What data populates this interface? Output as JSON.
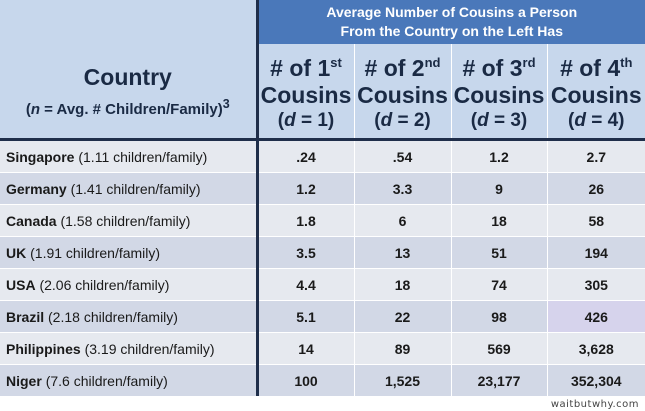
{
  "banner": {
    "line1": "Average Number of Cousins a Person",
    "line2": "From the Country on the Left Has"
  },
  "country_header": {
    "title": "Country",
    "subtitle_var": "n",
    "subtitle_text": " = Avg. # Children/Family)",
    "subtitle_open": "(",
    "footnote": "3"
  },
  "columns": [
    {
      "prefix": "# of ",
      "num": "1",
      "suffix": "st",
      "word": "Cousins",
      "d_label": "d",
      "d_value": " = 1)"
    },
    {
      "prefix": "# of ",
      "num": "2",
      "suffix": "nd",
      "word": "Cousins",
      "d_label": "d",
      "d_value": " = 2)"
    },
    {
      "prefix": "# of ",
      "num": "3",
      "suffix": "rd",
      "word": "Cousins",
      "d_label": "d",
      "d_value": " = 3)"
    },
    {
      "prefix": "# of ",
      "num": "4",
      "suffix": "th",
      "word": "Cousins",
      "d_label": "d",
      "d_value": " = 4)"
    }
  ],
  "chart_data": {
    "type": "table",
    "title": "Average Number of Cousins a Person From the Country on the Left Has",
    "rows": [
      {
        "country": "Singapore",
        "detail": "(1.11 children/family)",
        "values": [
          ".24",
          ".54",
          "1.2",
          "2.7"
        ]
      },
      {
        "country": "Germany",
        "detail": "(1.41 children/family)",
        "values": [
          "1.2",
          "3.3",
          "9",
          "26"
        ]
      },
      {
        "country": "Canada",
        "detail": "(1.58 children/family)",
        "values": [
          "1.8",
          "6",
          "18",
          "58"
        ]
      },
      {
        "country": "UK",
        "detail": "(1.91 children/family)",
        "values": [
          "3.5",
          "13",
          "51",
          "194"
        ]
      },
      {
        "country": "USA",
        "detail": "(2.06 children/family)",
        "values": [
          "4.4",
          "18",
          "74",
          "305"
        ]
      },
      {
        "country": "Brazil",
        "detail": "(2.18 children/family)",
        "values": [
          "5.1",
          "22",
          "98",
          "426"
        ]
      },
      {
        "country": "Philippines",
        "detail": "(3.19 children/family)",
        "values": [
          "14",
          "89",
          "569",
          "3,628"
        ]
      },
      {
        "country": "Niger",
        "detail": "(7.6 children/family)",
        "values": [
          "100",
          "1,525",
          "23,177",
          "352,304"
        ]
      }
    ]
  },
  "credit": "waitbutwhy.com"
}
